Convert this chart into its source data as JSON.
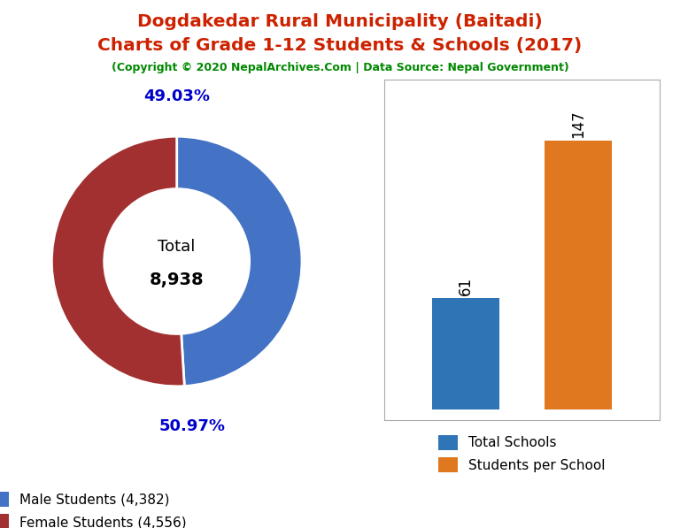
{
  "title_line1": "Dogdakedar Rural Municipality (Baitadi)",
  "title_line2": "Charts of Grade 1-12 Students & Schools (2017)",
  "subtitle": "(Copyright © 2020 NepalArchives.Com | Data Source: Nepal Government)",
  "title_color": "#cc2200",
  "subtitle_color": "#008800",
  "male_students": 4382,
  "female_students": 4556,
  "total_students": 8938,
  "male_pct": "49.03%",
  "female_pct": "50.97%",
  "male_color": "#4472c4",
  "female_color": "#a33030",
  "donut_label_color": "#0000cc",
  "total_schools": 61,
  "students_per_school": 147,
  "bar_color_schools": "#2e75b6",
  "bar_color_students": "#e07820",
  "bar_label1": "Total Schools",
  "bar_label2": "Students per School",
  "background_color": "#ffffff"
}
